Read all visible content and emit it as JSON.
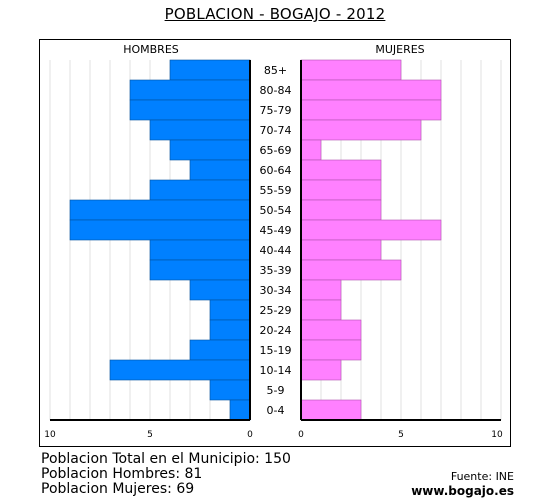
{
  "chart_data": {
    "type": "bar",
    "title": "POBLACION - BOGAJO - 2012",
    "left_header": "HOMBRES",
    "right_header": "MUJERES",
    "categories": [
      "85+",
      "80-84",
      "75-79",
      "70-74",
      "65-69",
      "60-64",
      "55-59",
      "50-54",
      "45-49",
      "40-44",
      "35-39",
      "30-34",
      "25-29",
      "20-24",
      "15-19",
      "10-14",
      "5-9",
      "0-4"
    ],
    "series": [
      {
        "name": "HOMBRES",
        "values": [
          4,
          6,
          6,
          5,
          4,
          3,
          5,
          9,
          9,
          5,
          5,
          3,
          2,
          2,
          3,
          7,
          2,
          1
        ],
        "color": "#0080ff"
      },
      {
        "name": "MUJERES",
        "values": [
          5,
          7,
          7,
          6,
          1,
          4,
          4,
          4,
          7,
          4,
          5,
          2,
          2,
          3,
          3,
          2,
          0,
          3
        ],
        "color": "#ff80ff"
      }
    ],
    "xlim": [
      0,
      10
    ],
    "male_ticks": [
      "10",
      "5",
      "0"
    ],
    "female_ticks": [
      "0",
      "5",
      "10"
    ],
    "grid": true
  },
  "footer": {
    "total": "Poblacion Total en el Municipio: 150",
    "hombres": "Poblacion Hombres: 81",
    "mujeres": "Poblacion Mujeres: 69",
    "source": "Fuente: INE",
    "website": "www.bogajo.es"
  }
}
